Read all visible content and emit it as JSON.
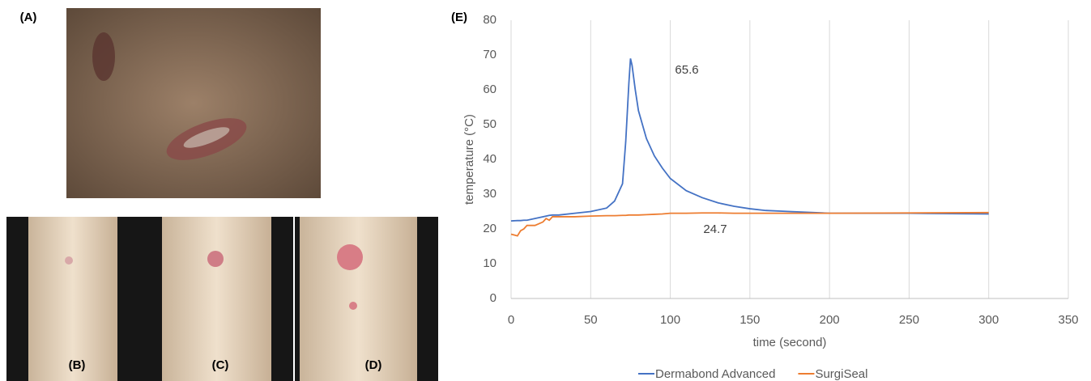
{
  "panel_labels": [
    "(A)",
    "(B)",
    "(C)",
    "(D)"
  ],
  "chart_data": {
    "type": "line",
    "title": "(E)",
    "x_label": "time (second)",
    "y_label": "temperature (°C)",
    "x": [
      0,
      4,
      6,
      8,
      10,
      15,
      20,
      22,
      24,
      26,
      30,
      40,
      50,
      60,
      65,
      70,
      72,
      74,
      75,
      76,
      78,
      80,
      85,
      90,
      95,
      100,
      110,
      120,
      130,
      140,
      150,
      160,
      175,
      200,
      250,
      300
    ],
    "series": [
      {
        "name": "Dermabond Advanced",
        "color": "#4472c4",
        "values": [
          22.3,
          22.4,
          22.4,
          22.5,
          22.5,
          23,
          23.5,
          23.7,
          23.9,
          24,
          24,
          24.5,
          25,
          26,
          28,
          33,
          45,
          62,
          69,
          67,
          60,
          54,
          46,
          41,
          37.5,
          34.5,
          31,
          29,
          27.5,
          26.5,
          25.8,
          25.3,
          25,
          24.5,
          24.5,
          24.3
        ]
      },
      {
        "name": "SurgiSeal",
        "color": "#ed7d31",
        "values": [
          18.5,
          18,
          19.5,
          20,
          21,
          21,
          22,
          23,
          22.5,
          23.5,
          23.5,
          23.5,
          23.7,
          23.8,
          23.8,
          23.9,
          23.9,
          24,
          24,
          24,
          24,
          24,
          24.1,
          24.2,
          24.3,
          24.5,
          24.5,
          24.6,
          24.6,
          24.5,
          24.5,
          24.5,
          24.5,
          24.5,
          24.6,
          24.7
        ]
      }
    ],
    "annotations": [
      "65.6",
      "24.7"
    ],
    "xlim": [
      0,
      350
    ],
    "xticks": [
      0,
      50,
      100,
      150,
      200,
      250,
      300,
      350
    ],
    "ylim": [
      0,
      80
    ],
    "yticks": [
      0,
      10,
      20,
      30,
      40,
      50,
      60,
      70,
      80
    ],
    "grid": "x",
    "legend": "bottom"
  }
}
